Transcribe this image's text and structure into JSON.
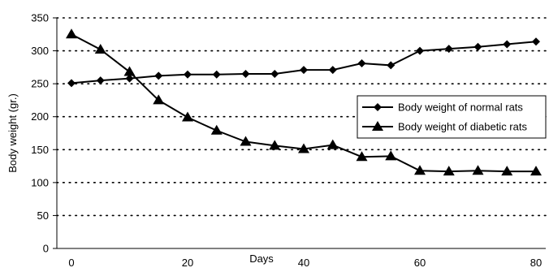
{
  "chart_data": {
    "type": "line",
    "xlabel": "Days",
    "ylabel": "Body weight (gr.)",
    "xlim": [
      0,
      80
    ],
    "ylim": [
      0,
      350
    ],
    "xticks": [
      0,
      20,
      40,
      60,
      80
    ],
    "yticks": [
      0,
      50,
      100,
      150,
      200,
      250,
      300,
      350
    ],
    "grid": "horizontal dotted",
    "legend_position": "right",
    "series": [
      {
        "name": "Body weight of normal rats",
        "marker": "diamond",
        "color": "#000000",
        "x": [
          0,
          5,
          10,
          15,
          20,
          25,
          30,
          35,
          40,
          45,
          50,
          55,
          60,
          65,
          70,
          75,
          80
        ],
        "y": [
          251,
          255,
          258,
          262,
          264,
          264,
          265,
          265,
          271,
          271,
          281,
          278,
          300,
          303,
          306,
          310,
          314
        ]
      },
      {
        "name": "Body weight of diabetic rats",
        "marker": "triangle",
        "color": "#000000",
        "x": [
          0,
          5,
          10,
          15,
          20,
          25,
          30,
          35,
          40,
          45,
          50,
          55,
          60,
          65,
          70,
          75,
          80
        ],
        "y": [
          325,
          302,
          268,
          225,
          199,
          179,
          162,
          156,
          151,
          157,
          139,
          140,
          118,
          117,
          118,
          117,
          117
        ]
      }
    ]
  }
}
